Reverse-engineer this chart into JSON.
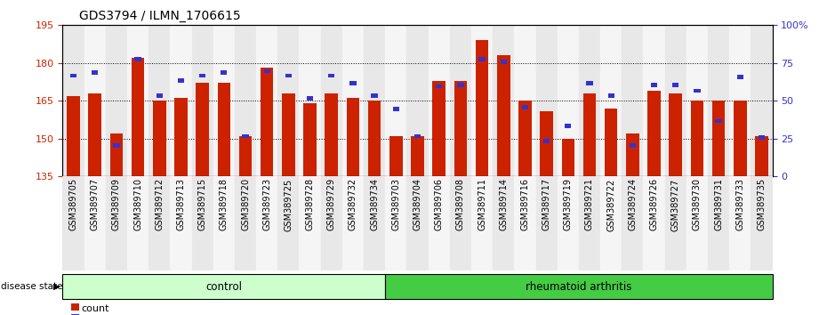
{
  "title": "GDS3794 / ILMN_1706615",
  "samples": [
    "GSM389705",
    "GSM389707",
    "GSM389709",
    "GSM389710",
    "GSM389712",
    "GSM389713",
    "GSM389715",
    "GSM389718",
    "GSM389720",
    "GSM389723",
    "GSM389725",
    "GSM389728",
    "GSM389729",
    "GSM389732",
    "GSM389734",
    "GSM389703",
    "GSM389704",
    "GSM389706",
    "GSM389708",
    "GSM389711",
    "GSM389714",
    "GSM389716",
    "GSM389717",
    "GSM389719",
    "GSM389721",
    "GSM389722",
    "GSM389724",
    "GSM389726",
    "GSM389727",
    "GSM389730",
    "GSM389731",
    "GSM389733",
    "GSM389735"
  ],
  "red_values": [
    167,
    168,
    152,
    182,
    165,
    166,
    172,
    172,
    151,
    178,
    168,
    164,
    168,
    166,
    165,
    151,
    151,
    173,
    173,
    189,
    183,
    165,
    161,
    150,
    168,
    162,
    152,
    169,
    168,
    165,
    165,
    165,
    151
  ],
  "blue_values_pct": [
    68,
    70,
    22,
    79,
    55,
    65,
    68,
    70,
    28,
    71,
    68,
    53,
    68,
    63,
    55,
    46,
    28,
    61,
    62,
    79,
    77,
    47,
    25,
    35,
    63,
    55,
    22,
    62,
    62,
    58,
    38,
    67,
    27
  ],
  "control_count": 15,
  "rheumatoid_count": 18,
  "ymin": 135,
  "ymax": 195,
  "yticks_left": [
    135,
    150,
    165,
    180,
    195
  ],
  "yticks_right": [
    0,
    25,
    50,
    75,
    100
  ],
  "bar_color_red": "#cc2200",
  "bar_color_blue": "#3333cc",
  "control_color": "#ccffcc",
  "rheumatoid_color": "#44cc44",
  "bg_color": "#ffffff",
  "label_fontsize": 7,
  "title_fontsize": 10,
  "col_bg_even": "#e8e8e8",
  "col_bg_odd": "#f5f5f5"
}
